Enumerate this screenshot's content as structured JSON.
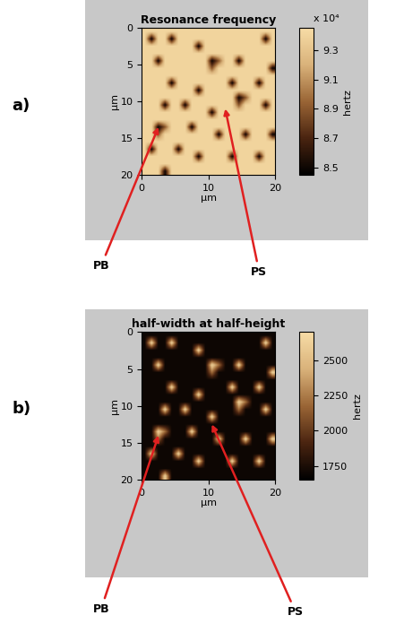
{
  "chart_data": [
    {
      "type": "heatmap",
      "panel_label": "a)",
      "title": "Resonance frequency",
      "x_label": "µm",
      "y_label": "µm",
      "xlim": [
        0,
        20
      ],
      "ylim": [
        20,
        0
      ],
      "xticks": [
        0,
        10,
        20
      ],
      "yticks": [
        0,
        5,
        10,
        15,
        20
      ],
      "colorbar_range": [
        84500,
        94500
      ],
      "colorbar_ticks": [
        {
          "value": 85000,
          "label": "8.5"
        },
        {
          "value": 87000,
          "label": "8.7"
        },
        {
          "value": 89000,
          "label": "8.9"
        },
        {
          "value": 91000,
          "label": "9.1"
        },
        {
          "value": 93000,
          "label": "9.3"
        }
      ],
      "colorbar_label": "hertz",
      "colorbar_multiplier": "x 10⁴",
      "annotations": [
        {
          "text": "PB",
          "x": 2.5,
          "y": 13.5
        },
        {
          "text": "PS",
          "x": 12.5,
          "y": 11.0
        }
      ],
      "cells": [
        [
          94000,
          94000,
          94000,
          94000,
          94000,
          94000,
          94000,
          94000,
          94000,
          94000,
          94000,
          94000,
          94000,
          94000,
          94000,
          94000,
          94000,
          94000,
          94000,
          94000
        ],
        [
          94000,
          85000,
          94000,
          94000,
          85000,
          94000,
          94000,
          94000,
          94000,
          94000,
          94000,
          94000,
          94000,
          94000,
          94000,
          94000,
          94000,
          94000,
          85000,
          94000
        ],
        [
          94000,
          94000,
          94000,
          94000,
          94000,
          94000,
          94000,
          94000,
          85000,
          94000,
          94000,
          94000,
          94000,
          94000,
          94000,
          94000,
          94000,
          94000,
          94000,
          94000
        ],
        [
          94000,
          94000,
          94000,
          94000,
          94000,
          94000,
          94000,
          94000,
          94000,
          94000,
          94000,
          94000,
          94000,
          94000,
          94000,
          94000,
          94000,
          94000,
          94000,
          94000
        ],
        [
          94000,
          94000,
          85000,
          94000,
          94000,
          94000,
          94000,
          94000,
          94000,
          94000,
          85000,
          89000,
          94000,
          94000,
          85000,
          94000,
          94000,
          94000,
          94000,
          94000
        ],
        [
          94000,
          94000,
          94000,
          94000,
          94000,
          94000,
          94000,
          94000,
          94000,
          94000,
          89000,
          94000,
          94000,
          94000,
          94000,
          94000,
          94000,
          94000,
          94000,
          85000
        ],
        [
          94000,
          94000,
          94000,
          94000,
          94000,
          94000,
          94000,
          94000,
          94000,
          94000,
          94000,
          94000,
          94000,
          94000,
          94000,
          94000,
          94000,
          94000,
          94000,
          94000
        ],
        [
          94000,
          94000,
          94000,
          94000,
          85000,
          94000,
          94000,
          94000,
          94000,
          94000,
          94000,
          94000,
          94000,
          85000,
          94000,
          94000,
          94000,
          85000,
          94000,
          94000
        ],
        [
          94000,
          94000,
          94000,
          94000,
          94000,
          94000,
          94000,
          94000,
          85000,
          94000,
          94000,
          94000,
          94000,
          94000,
          94000,
          94000,
          94000,
          94000,
          94000,
          94000
        ],
        [
          94000,
          94000,
          94000,
          94000,
          94000,
          94000,
          94000,
          94000,
          94000,
          94000,
          94000,
          94000,
          94000,
          94000,
          85000,
          89000,
          94000,
          94000,
          94000,
          94000
        ],
        [
          94000,
          94000,
          94000,
          85000,
          94000,
          94000,
          85000,
          94000,
          94000,
          94000,
          94000,
          94000,
          94000,
          94000,
          89000,
          94000,
          94000,
          94000,
          85000,
          94000
        ],
        [
          94000,
          94000,
          94000,
          94000,
          94000,
          94000,
          94000,
          94000,
          94000,
          94000,
          85000,
          94000,
          94000,
          94000,
          94000,
          94000,
          94000,
          94000,
          94000,
          94000
        ],
        [
          94000,
          94000,
          94000,
          94000,
          94000,
          94000,
          94000,
          94000,
          94000,
          94000,
          94000,
          94000,
          94000,
          94000,
          94000,
          94000,
          94000,
          94000,
          94000,
          94000
        ],
        [
          94000,
          94000,
          85000,
          89000,
          94000,
          94000,
          94000,
          85000,
          94000,
          94000,
          94000,
          94000,
          94000,
          94000,
          94000,
          94000,
          94000,
          94000,
          94000,
          94000
        ],
        [
          94000,
          94000,
          89000,
          94000,
          94000,
          94000,
          94000,
          94000,
          94000,
          94000,
          94000,
          85000,
          94000,
          94000,
          94000,
          85000,
          94000,
          94000,
          94000,
          85000
        ],
        [
          94000,
          94000,
          94000,
          94000,
          94000,
          94000,
          94000,
          94000,
          94000,
          94000,
          94000,
          94000,
          94000,
          94000,
          94000,
          94000,
          94000,
          94000,
          94000,
          94000
        ],
        [
          94000,
          85000,
          94000,
          94000,
          94000,
          85000,
          94000,
          94000,
          94000,
          94000,
          94000,
          94000,
          94000,
          94000,
          94000,
          94000,
          94000,
          94000,
          94000,
          94000
        ],
        [
          94000,
          94000,
          94000,
          94000,
          94000,
          94000,
          94000,
          94000,
          85000,
          94000,
          94000,
          94000,
          94000,
          85000,
          94000,
          94000,
          94000,
          85000,
          94000,
          94000
        ],
        [
          94000,
          94000,
          94000,
          94000,
          94000,
          94000,
          94000,
          94000,
          94000,
          94000,
          94000,
          94000,
          94000,
          94000,
          94000,
          94000,
          94000,
          94000,
          94000,
          94000
        ],
        [
          94000,
          94000,
          94000,
          85000,
          94000,
          94000,
          94000,
          94000,
          94000,
          94000,
          94000,
          94000,
          94000,
          94000,
          94000,
          94000,
          94000,
          94000,
          94000,
          94000
        ]
      ]
    },
    {
      "type": "heatmap",
      "panel_label": "b)",
      "title": "half-width at half-height",
      "x_label": "µm",
      "y_label": "µm",
      "xlim": [
        0,
        20
      ],
      "ylim": [
        20,
        0
      ],
      "xticks": [
        0,
        10,
        20
      ],
      "yticks": [
        0,
        5,
        10,
        15,
        20
      ],
      "colorbar_range": [
        1650,
        2700
      ],
      "colorbar_ticks": [
        1750,
        2000,
        2250,
        2500
      ],
      "colorbar_label": "hertz",
      "annotations": [
        {
          "text": "PB",
          "x": 2.5,
          "y": 14.0
        },
        {
          "text": "PS",
          "x": 10.5,
          "y": 12.5
        }
      ],
      "cells": [
        [
          1700,
          1700,
          1700,
          1700,
          1700,
          1700,
          1700,
          1700,
          1700,
          1700,
          1700,
          1700,
          1700,
          1700,
          1700,
          1700,
          1700,
          1700,
          1700,
          1700
        ],
        [
          1700,
          2600,
          1700,
          1700,
          2600,
          1700,
          1700,
          1700,
          1700,
          1700,
          1700,
          1700,
          1700,
          1700,
          1700,
          1700,
          1700,
          1700,
          2600,
          1700
        ],
        [
          1700,
          1700,
          1700,
          1700,
          1700,
          1700,
          1700,
          1700,
          2600,
          1700,
          1700,
          1700,
          1700,
          1700,
          1700,
          1700,
          1700,
          1700,
          1700,
          1700
        ],
        [
          1700,
          1700,
          1700,
          1700,
          1700,
          1700,
          1700,
          1700,
          1700,
          1700,
          1700,
          1700,
          1700,
          1700,
          1700,
          1700,
          1700,
          1700,
          1700,
          1700
        ],
        [
          1700,
          1700,
          2600,
          1700,
          1700,
          1700,
          1700,
          1700,
          1700,
          1700,
          2600,
          2200,
          1700,
          1700,
          2600,
          1700,
          1700,
          1700,
          1700,
          1700
        ],
        [
          1700,
          1700,
          1700,
          1700,
          1700,
          1700,
          1700,
          1700,
          1700,
          1700,
          2200,
          1700,
          1700,
          1700,
          1700,
          1700,
          1700,
          1700,
          1700,
          2600
        ],
        [
          1700,
          1700,
          1700,
          1700,
          1700,
          1700,
          1700,
          1700,
          1700,
          1700,
          1700,
          1700,
          1700,
          1700,
          1700,
          1700,
          1700,
          1700,
          1700,
          1700
        ],
        [
          1700,
          1700,
          1700,
          1700,
          2600,
          1700,
          1700,
          1700,
          1700,
          1700,
          1700,
          1700,
          1700,
          2600,
          1700,
          1700,
          1700,
          2600,
          1700,
          1700
        ],
        [
          1700,
          1700,
          1700,
          1700,
          1700,
          1700,
          1700,
          1700,
          2600,
          1700,
          1700,
          1700,
          1700,
          1700,
          1700,
          1700,
          1700,
          1700,
          1700,
          1700
        ],
        [
          1700,
          1700,
          1700,
          1700,
          1700,
          1700,
          1700,
          1700,
          1700,
          1700,
          1700,
          1700,
          1700,
          1700,
          2600,
          2200,
          1700,
          1700,
          1700,
          1700
        ],
        [
          1700,
          1700,
          1700,
          2600,
          1700,
          1700,
          2600,
          1700,
          1700,
          1700,
          1700,
          1700,
          1700,
          1700,
          2200,
          1700,
          1700,
          1700,
          2600,
          1700
        ],
        [
          1700,
          1700,
          1700,
          1700,
          1700,
          1700,
          1700,
          1700,
          1700,
          1700,
          2600,
          1700,
          1700,
          1700,
          1700,
          1700,
          1700,
          1700,
          1700,
          1700
        ],
        [
          1700,
          1700,
          1700,
          1700,
          1700,
          1700,
          1700,
          1700,
          1700,
          1700,
          1700,
          1700,
          1700,
          1700,
          1700,
          1700,
          1700,
          1700,
          1700,
          1700
        ],
        [
          1700,
          1700,
          2600,
          2200,
          1700,
          1700,
          1700,
          2600,
          1700,
          1700,
          1700,
          1700,
          1700,
          1700,
          1700,
          1700,
          1700,
          1700,
          1700,
          1700
        ],
        [
          1700,
          1700,
          2200,
          1700,
          1700,
          1700,
          1700,
          1700,
          1700,
          1700,
          1700,
          2600,
          1700,
          1700,
          1700,
          2600,
          1700,
          1700,
          1700,
          2600
        ],
        [
          1700,
          1700,
          1700,
          1700,
          1700,
          1700,
          1700,
          1700,
          1700,
          1700,
          1700,
          1700,
          1700,
          1700,
          1700,
          1700,
          1700,
          1700,
          1700,
          1700
        ],
        [
          1700,
          2600,
          1700,
          1700,
          1700,
          2600,
          1700,
          1700,
          1700,
          1700,
          1700,
          1700,
          1700,
          1700,
          1700,
          1700,
          1700,
          1700,
          1700,
          1700
        ],
        [
          1700,
          1700,
          1700,
          1700,
          1700,
          1700,
          1700,
          1700,
          2600,
          1700,
          1700,
          1700,
          1700,
          2600,
          1700,
          1700,
          1700,
          2600,
          1700,
          1700
        ],
        [
          1700,
          1700,
          1700,
          1700,
          1700,
          1700,
          1700,
          1700,
          1700,
          1700,
          1700,
          1700,
          1700,
          1700,
          1700,
          1700,
          1700,
          1700,
          1700,
          1700
        ],
        [
          1700,
          1700,
          1700,
          2600,
          1700,
          1700,
          1700,
          1700,
          1700,
          1700,
          1700,
          1700,
          1700,
          1700,
          1700,
          1700,
          1700,
          1700,
          1700,
          1700
        ]
      ]
    }
  ]
}
